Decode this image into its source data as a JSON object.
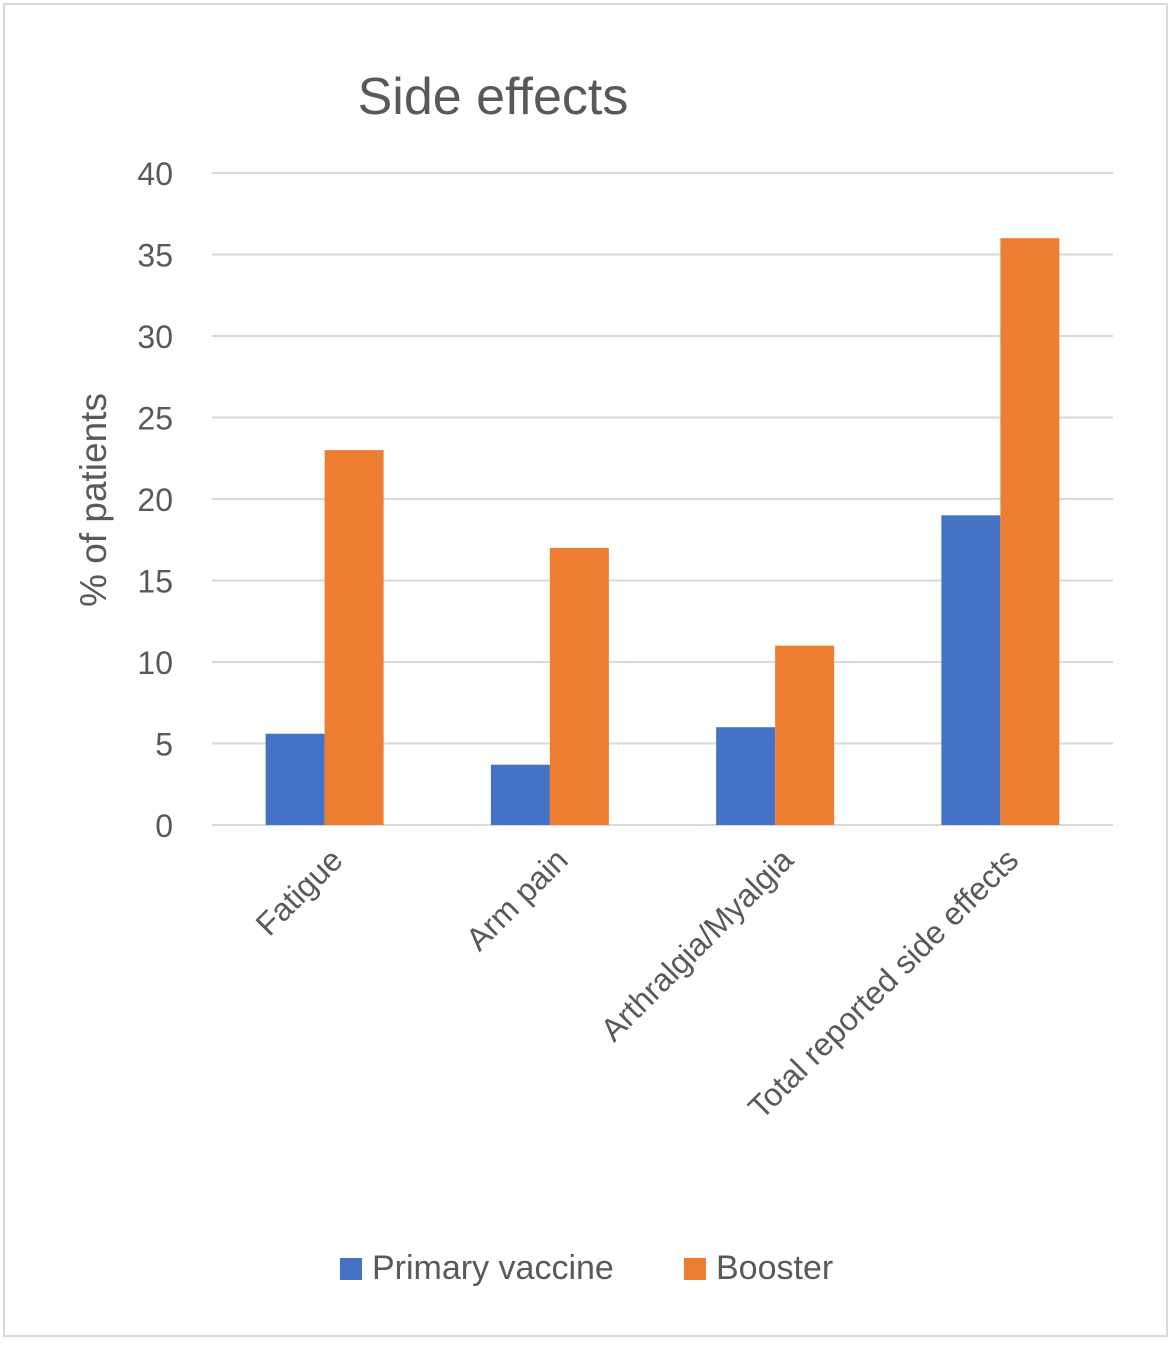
{
  "chart_data": {
    "type": "bar",
    "title": "Side effects",
    "xlabel": "",
    "ylabel": "% of patients",
    "categories": [
      "Fatigue",
      "Arm pain",
      "Arthralgia/Myalgia",
      "Total reported side effects"
    ],
    "series": [
      {
        "name": "Primary vaccine",
        "color": "#4472C4",
        "values": [
          5.6,
          3.7,
          6.0,
          19.0
        ]
      },
      {
        "name": "Booster",
        "color": "#ED7D31",
        "values": [
          23.0,
          17.0,
          11.0,
          36.0
        ]
      }
    ],
    "ylim": [
      0,
      40
    ],
    "yticks": [
      0,
      5,
      10,
      15,
      20,
      25,
      30,
      35,
      40
    ],
    "grid": true,
    "legend_position": "bottom"
  }
}
